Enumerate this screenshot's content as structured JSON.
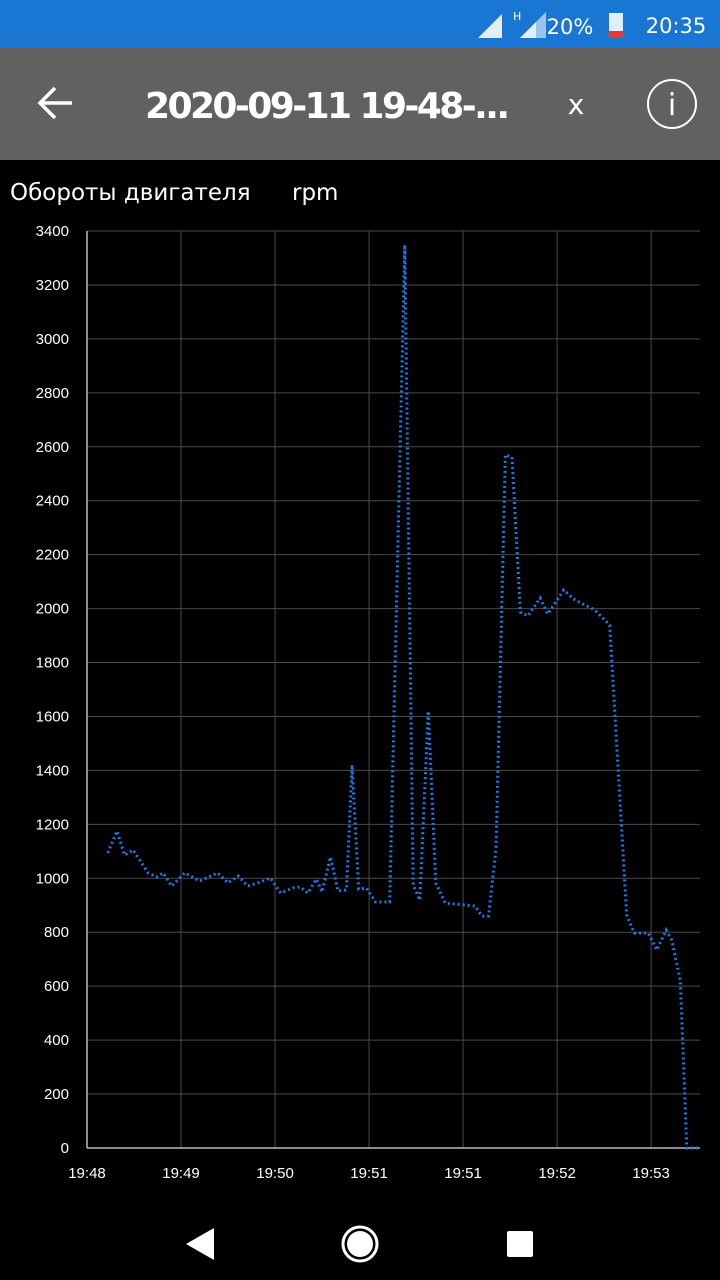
{
  "status_bar": {
    "battery": "20%",
    "time": "20:35"
  },
  "app_bar": {
    "title": "2020-09-11 19-48-...",
    "close": "x",
    "info": "i"
  },
  "chart_data": {
    "type": "line",
    "title": "Обороты двигателя",
    "unit": "rpm",
    "x": [
      0.22,
      0.32,
      0.4,
      0.49,
      0.65,
      0.74,
      0.81,
      0.9,
      1.04,
      1.2,
      1.39,
      1.5,
      1.61,
      1.71,
      1.84,
      1.95,
      2.06,
      2.19,
      2.27,
      2.35,
      2.44,
      2.5,
      2.59,
      2.67,
      2.76,
      2.82,
      2.89,
      2.97,
      3.07,
      3.22,
      3.38,
      3.47,
      3.54,
      3.63,
      3.71,
      3.81,
      4.13,
      4.2,
      4.27,
      4.35,
      4.45,
      4.52,
      4.61,
      4.69,
      4.82,
      4.9,
      5.07,
      5.19,
      5.4,
      5.56,
      5.74,
      5.82,
      5.97,
      6.06,
      6.16,
      6.22,
      6.31,
      6.38,
      6.5
    ],
    "values": [
      1094,
      1175,
      1086,
      1105,
      1020,
      1005,
      1020,
      971,
      1020,
      990,
      1020,
      983,
      1008,
      971,
      986,
      1001,
      945,
      964,
      968,
      945,
      997,
      949,
      1079,
      953,
      957,
      1420,
      960,
      964,
      912,
      912,
      3348,
      975,
      919,
      1620,
      983,
      908,
      897,
      860,
      860,
      1105,
      2570,
      2562,
      1987,
      1973,
      2039,
      1980,
      2069,
      2032,
      1995,
      1939,
      864,
      797,
      797,
      734,
      808,
      771,
      623,
      0,
      0
    ],
    "color": "#1f7ae6",
    "grid": true,
    "xlim": [
      0,
      6.52
    ],
    "xticks": [
      {
        "value": 0,
        "label": "19:48"
      },
      {
        "value": 1,
        "label": "19:49"
      },
      {
        "value": 2,
        "label": "19:50"
      },
      {
        "value": 3,
        "label": "19:51"
      },
      {
        "value": 4,
        "label": "19:51"
      },
      {
        "value": 5,
        "label": "19:52"
      },
      {
        "value": 6,
        "label": "19:53"
      }
    ],
    "ylim": [
      0,
      3400
    ],
    "yticks": [
      0,
      200,
      400,
      600,
      800,
      1000,
      1200,
      1400,
      1600,
      1800,
      2000,
      2200,
      2400,
      2600,
      2800,
      3000,
      3200,
      3400
    ]
  }
}
